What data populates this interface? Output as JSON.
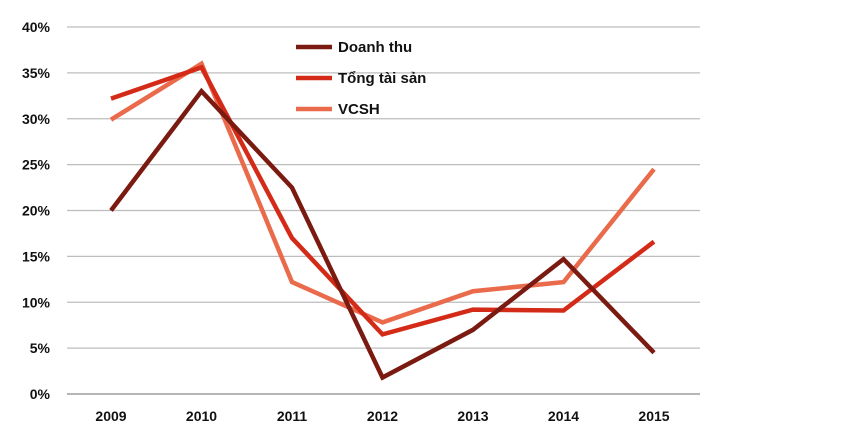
{
  "chart_data": {
    "type": "line",
    "categories": [
      "2009",
      "2010",
      "2011",
      "2012",
      "2013",
      "2014",
      "2015"
    ],
    "ylim": [
      0,
      40
    ],
    "yticks": [
      0,
      5,
      10,
      15,
      20,
      25,
      30,
      35,
      40
    ],
    "ytick_labels": [
      "0%",
      "5%",
      "10%",
      "15%",
      "20%",
      "25%",
      "30%",
      "35%",
      "40%"
    ],
    "grid": true,
    "legend_position": "top-center",
    "series": [
      {
        "name": "Doanh thu",
        "color": "#7a1a10",
        "values": [
          20.0,
          33.0,
          22.5,
          1.8,
          7.0,
          14.7,
          4.5
        ]
      },
      {
        "name": "Tổng tài sản",
        "color": "#d42a18",
        "values": [
          32.2,
          35.6,
          17.0,
          6.5,
          9.2,
          9.1,
          16.6
        ]
      },
      {
        "name": "VCSH",
        "color": "#ea6a4c",
        "values": [
          29.9,
          36.0,
          12.2,
          7.8,
          11.2,
          12.2,
          24.5
        ]
      }
    ]
  }
}
